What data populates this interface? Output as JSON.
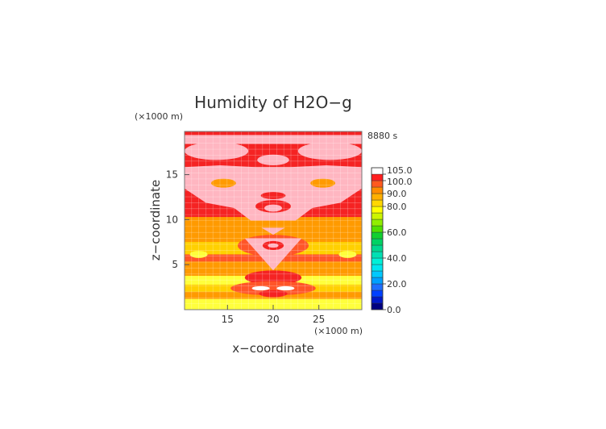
{
  "chart_data": {
    "type": "heatmap",
    "title": "Humidity of H2O−g",
    "time_label": "8880 s",
    "xlabel": "x−coordinate",
    "ylabel": "z−coordinate",
    "x_unit": "(×1000 m)",
    "y_unit": "(×1000 m)",
    "xlim": [
      10.3,
      29.7
    ],
    "ylim": [
      0,
      19.8
    ],
    "x_ticks": [
      15,
      20,
      25
    ],
    "y_ticks": [
      5,
      10,
      15
    ],
    "x_tick_labels": [
      "15",
      "20",
      "25"
    ],
    "y_tick_labels": [
      "5",
      "10",
      "15"
    ],
    "grid": true,
    "colorbar": {
      "labels": [
        "0.0",
        "20.0",
        "40.0",
        "60.0",
        "80.0",
        "90.0",
        "100.0",
        "105.0"
      ],
      "label_values": [
        0,
        20,
        40,
        60,
        80,
        90,
        100,
        105
      ],
      "levels": [
        {
          "from": 0,
          "to": 5,
          "color": "#000080"
        },
        {
          "from": 5,
          "to": 10,
          "color": "#0018c8"
        },
        {
          "from": 10,
          "to": 15,
          "color": "#0040ff"
        },
        {
          "from": 15,
          "to": 20,
          "color": "#1e6eff"
        },
        {
          "from": 20,
          "to": 25,
          "color": "#00a0ff"
        },
        {
          "from": 25,
          "to": 30,
          "color": "#00c8ff"
        },
        {
          "from": 30,
          "to": 35,
          "color": "#00e6f0"
        },
        {
          "from": 35,
          "to": 40,
          "color": "#00f0d8"
        },
        {
          "from": 40,
          "to": 45,
          "color": "#00e0b4"
        },
        {
          "from": 45,
          "to": 50,
          "color": "#00d890"
        },
        {
          "from": 50,
          "to": 55,
          "color": "#00d264"
        },
        {
          "from": 55,
          "to": 60,
          "color": "#10d030"
        },
        {
          "from": 60,
          "to": 65,
          "color": "#50e000"
        },
        {
          "from": 65,
          "to": 70,
          "color": "#90ee00"
        },
        {
          "from": 70,
          "to": 75,
          "color": "#ccf500"
        },
        {
          "from": 75,
          "to": 80,
          "color": "#ffff00"
        },
        {
          "from": 80,
          "to": 85,
          "color": "#ffd700"
        },
        {
          "from": 85,
          "to": 90,
          "color": "#ffb000"
        },
        {
          "from": 90,
          "to": 95,
          "color": "#ff8c00"
        },
        {
          "from": 95,
          "to": 100,
          "color": "#ff5a1e"
        },
        {
          "from": 100,
          "to": 105,
          "color": "#ff1e1e"
        },
        {
          "from": 105,
          "to": 110,
          "color": "#ffffff"
        }
      ]
    },
    "field_colors": {
      "pink": "#ffb6c1",
      "red": "#f52323",
      "red_orange": "#ff5528",
      "orange": "#ff9a00",
      "gold": "#ffd000",
      "yellow": "#ffff3c",
      "white": "#ffffff"
    }
  }
}
